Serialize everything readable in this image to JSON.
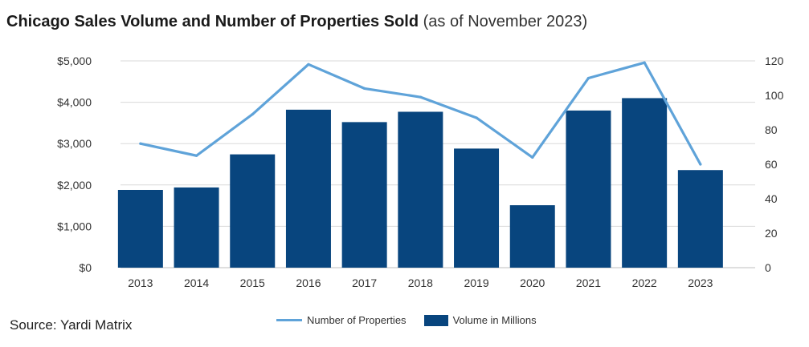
{
  "title": {
    "main": "Chicago Sales Volume and Number of Properties Sold",
    "sub": "(as of November 2023)"
  },
  "source": "Source: Yardi Matrix",
  "colors": {
    "bar": "#08457e",
    "line": "#5fa3d9",
    "grid": "#d9d9d9"
  },
  "chart_data": {
    "type": "bar",
    "categories": [
      "2013",
      "2014",
      "2015",
      "2016",
      "2017",
      "2018",
      "2019",
      "2020",
      "2021",
      "2022",
      "2023"
    ],
    "series": [
      {
        "name": "Volume in Millions",
        "type": "bar",
        "axis": "left",
        "values": [
          1880,
          1940,
          2740,
          3820,
          3520,
          3770,
          2880,
          1510,
          3800,
          4100,
          2360
        ]
      },
      {
        "name": "Number of Properties",
        "type": "line",
        "axis": "right",
        "values": [
          72,
          65,
          89,
          118,
          104,
          99,
          87,
          64,
          110,
          119,
          60
        ]
      }
    ],
    "left_axis": {
      "ylim": [
        0,
        5000
      ],
      "ticks": [
        0,
        1000,
        2000,
        3000,
        4000,
        5000
      ],
      "tick_labels": [
        "$0",
        "$1,000",
        "$2,000",
        "$3,000",
        "$4,000",
        "$5,000"
      ]
    },
    "right_axis": {
      "ylim": [
        0,
        120
      ],
      "ticks": [
        0,
        20,
        40,
        60,
        80,
        100,
        120
      ],
      "tick_labels": [
        "0",
        "20",
        "40",
        "60",
        "80",
        "100",
        "120"
      ]
    },
    "grid": true,
    "legend_position": "bottom"
  }
}
